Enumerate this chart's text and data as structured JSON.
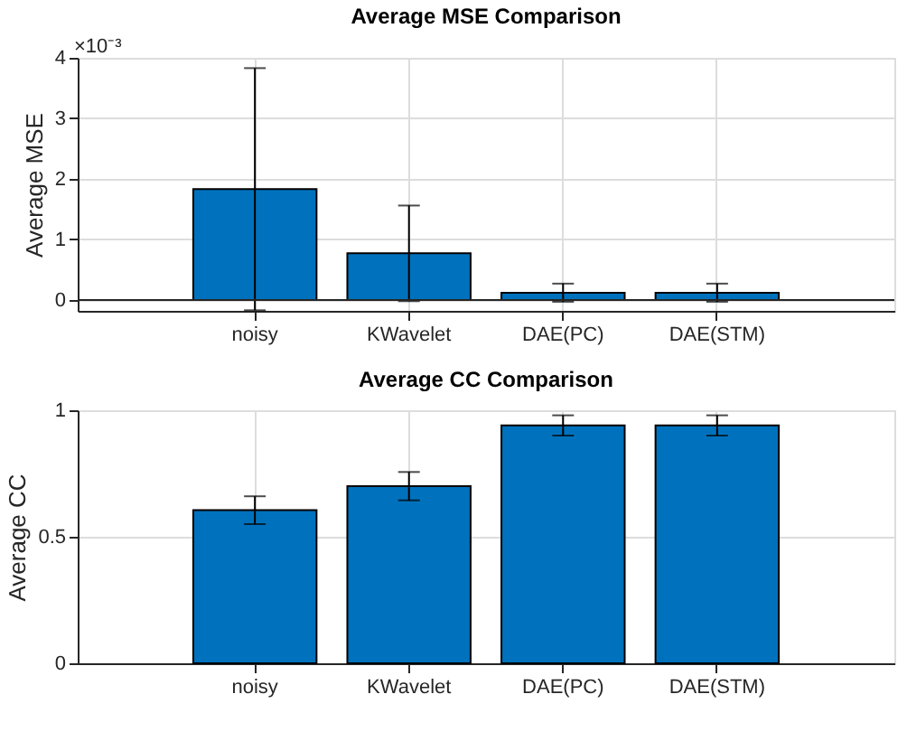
{
  "chart_data": [
    {
      "type": "bar",
      "title": "Average MSE Comparison",
      "ylabel": "Average MSE",
      "categories": [
        "noisy",
        "KWavelet",
        "DAE(PC)",
        "DAE(STM)"
      ],
      "values": [
        1.83,
        0.77,
        0.12,
        0.12
      ],
      "errors": [
        2.0,
        0.79,
        0.15,
        0.15
      ],
      "color": "#0072bd",
      "ylim": [
        -0.18,
        4
      ],
      "yticks": [
        0,
        1,
        2,
        3,
        4
      ],
      "annotations": [
        "×10⁻³"
      ],
      "ref_lines": [
        {
          "axis": "y",
          "value": 0
        }
      ],
      "grid": true
    },
    {
      "type": "bar",
      "title": "Average CC Comparison",
      "ylabel": "Average CC",
      "categories": [
        "noisy",
        "KWavelet",
        "DAE(PC)",
        "DAE(STM)"
      ],
      "values": [
        0.605,
        0.7,
        0.94,
        0.94
      ],
      "errors": [
        0.055,
        0.056,
        0.04,
        0.04
      ],
      "color": "#0072bd",
      "ylim": [
        0,
        1
      ],
      "yticks": [
        0,
        0.5,
        1
      ],
      "grid": true
    }
  ]
}
